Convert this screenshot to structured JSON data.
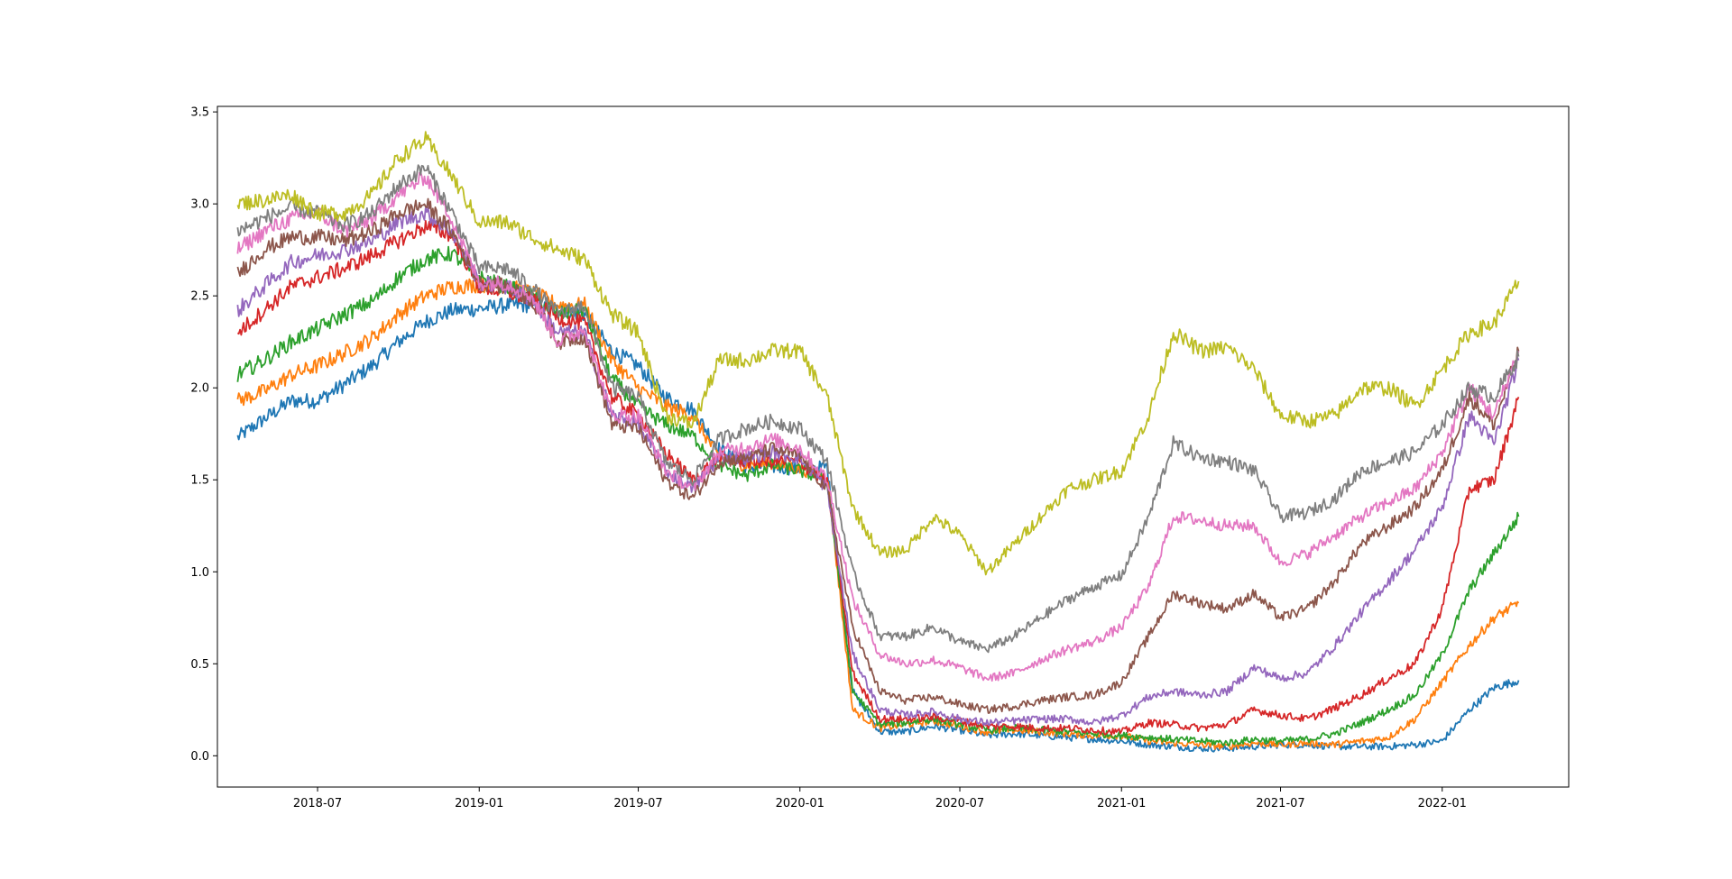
{
  "chart_data": {
    "type": "line",
    "title": "",
    "xlabel": "",
    "ylabel": "",
    "xlim": [
      "2018-03-09",
      "2022-05-25"
    ],
    "ylim": [
      -0.17,
      3.53
    ],
    "grid": false,
    "legend": "none",
    "x_ticks": [
      {
        "date": "2018-07-01",
        "label": "2018-07"
      },
      {
        "date": "2019-01-01",
        "label": "2019-01"
      },
      {
        "date": "2019-07-01",
        "label": "2019-07"
      },
      {
        "date": "2020-01-01",
        "label": "2020-01"
      },
      {
        "date": "2020-07-01",
        "label": "2020-07"
      },
      {
        "date": "2021-01-01",
        "label": "2021-01"
      },
      {
        "date": "2021-07-01",
        "label": "2021-07"
      },
      {
        "date": "2022-01-01",
        "label": "2022-01"
      }
    ],
    "y_ticks": [
      {
        "value": 0.0,
        "label": "0.0"
      },
      {
        "value": 0.5,
        "label": "0.5"
      },
      {
        "value": 1.0,
        "label": "1.0"
      },
      {
        "value": 1.5,
        "label": "1.5"
      },
      {
        "value": 2.0,
        "label": "2.0"
      },
      {
        "value": 2.5,
        "label": "2.5"
      },
      {
        "value": 3.0,
        "label": "3.0"
      },
      {
        "value": 3.5,
        "label": "3.5"
      }
    ],
    "x": [
      "2018-04-01",
      "2018-05-01",
      "2018-06-01",
      "2018-07-01",
      "2018-08-01",
      "2018-09-01",
      "2018-10-01",
      "2018-11-01",
      "2018-12-01",
      "2019-01-01",
      "2019-02-01",
      "2019-03-01",
      "2019-04-01",
      "2019-05-01",
      "2019-06-01",
      "2019-07-01",
      "2019-08-01",
      "2019-09-01",
      "2019-10-01",
      "2019-11-01",
      "2019-12-01",
      "2020-01-01",
      "2020-02-01",
      "2020-03-01",
      "2020-04-01",
      "2020-05-01",
      "2020-06-01",
      "2020-07-01",
      "2020-08-01",
      "2020-09-01",
      "2020-10-01",
      "2020-11-01",
      "2020-12-01",
      "2021-01-01",
      "2021-02-01",
      "2021-03-01",
      "2021-04-01",
      "2021-05-01",
      "2021-06-01",
      "2021-07-01",
      "2021-08-01",
      "2021-09-01",
      "2021-10-01",
      "2021-11-01",
      "2021-12-01",
      "2022-01-01",
      "2022-02-01",
      "2022-03-01",
      "2022-03-29"
    ],
    "series": [
      {
        "color": "#1f77b4",
        "values": [
          1.73,
          1.83,
          1.93,
          1.93,
          2.02,
          2.12,
          2.25,
          2.36,
          2.42,
          2.43,
          2.45,
          2.45,
          2.42,
          2.4,
          2.2,
          2.12,
          1.95,
          1.88,
          1.67,
          1.57,
          1.57,
          1.56,
          1.57,
          0.35,
          0.13,
          0.13,
          0.16,
          0.14,
          0.11,
          0.12,
          0.11,
          0.1,
          0.09,
          0.08,
          0.06,
          0.05,
          0.04,
          0.04,
          0.05,
          0.06,
          0.06,
          0.05,
          0.05,
          0.05,
          0.06,
          0.08,
          0.25,
          0.37,
          0.41
        ]
      },
      {
        "color": "#ff7f0e",
        "values": [
          1.93,
          1.98,
          2.07,
          2.12,
          2.19,
          2.27,
          2.4,
          2.5,
          2.55,
          2.56,
          2.55,
          2.52,
          2.45,
          2.45,
          2.15,
          2.0,
          1.9,
          1.85,
          1.62,
          1.58,
          1.59,
          1.56,
          1.52,
          0.25,
          0.15,
          0.17,
          0.19,
          0.16,
          0.13,
          0.14,
          0.13,
          0.12,
          0.11,
          0.11,
          0.08,
          0.07,
          0.06,
          0.05,
          0.07,
          0.06,
          0.07,
          0.06,
          0.08,
          0.1,
          0.2,
          0.4,
          0.6,
          0.75,
          0.83
        ]
      },
      {
        "color": "#2ca02c",
        "values": [
          2.07,
          2.15,
          2.25,
          2.32,
          2.4,
          2.47,
          2.6,
          2.7,
          2.73,
          2.6,
          2.55,
          2.5,
          2.4,
          2.42,
          2.05,
          1.9,
          1.8,
          1.74,
          1.58,
          1.52,
          1.58,
          1.55,
          1.5,
          0.35,
          0.17,
          0.18,
          0.2,
          0.17,
          0.14,
          0.15,
          0.14,
          0.13,
          0.12,
          0.11,
          0.1,
          0.09,
          0.08,
          0.07,
          0.09,
          0.08,
          0.09,
          0.12,
          0.18,
          0.25,
          0.33,
          0.55,
          0.9,
          1.1,
          1.3
        ]
      },
      {
        "color": "#d62728",
        "values": [
          2.3,
          2.42,
          2.55,
          2.6,
          2.65,
          2.72,
          2.8,
          2.88,
          2.83,
          2.55,
          2.52,
          2.48,
          2.38,
          2.35,
          1.95,
          1.85,
          1.65,
          1.5,
          1.62,
          1.6,
          1.6,
          1.6,
          1.48,
          0.45,
          0.2,
          0.2,
          0.21,
          0.19,
          0.16,
          0.16,
          0.15,
          0.15,
          0.14,
          0.13,
          0.18,
          0.17,
          0.15,
          0.17,
          0.25,
          0.22,
          0.2,
          0.26,
          0.33,
          0.42,
          0.5,
          0.8,
          1.45,
          1.5,
          1.95
        ]
      },
      {
        "color": "#9467bd",
        "values": [
          2.42,
          2.55,
          2.68,
          2.72,
          2.75,
          2.8,
          2.9,
          2.95,
          2.85,
          2.57,
          2.55,
          2.48,
          2.3,
          2.3,
          1.85,
          1.8,
          1.55,
          1.45,
          1.62,
          1.62,
          1.65,
          1.62,
          1.45,
          0.55,
          0.25,
          0.22,
          0.24,
          0.2,
          0.18,
          0.19,
          0.2,
          0.2,
          0.18,
          0.22,
          0.32,
          0.35,
          0.33,
          0.35,
          0.48,
          0.42,
          0.45,
          0.6,
          0.78,
          0.95,
          1.12,
          1.35,
          1.85,
          1.7,
          2.15
        ]
      },
      {
        "color": "#8c564b",
        "values": [
          2.62,
          2.75,
          2.82,
          2.82,
          2.8,
          2.85,
          2.95,
          3.0,
          2.85,
          2.57,
          2.55,
          2.48,
          2.25,
          2.28,
          1.8,
          1.78,
          1.5,
          1.4,
          1.6,
          1.62,
          1.67,
          1.63,
          1.45,
          0.7,
          0.35,
          0.3,
          0.32,
          0.28,
          0.25,
          0.27,
          0.3,
          0.32,
          0.33,
          0.4,
          0.65,
          0.88,
          0.83,
          0.8,
          0.88,
          0.75,
          0.8,
          0.95,
          1.15,
          1.25,
          1.35,
          1.55,
          1.95,
          1.8,
          2.2
        ]
      },
      {
        "color": "#e377c2",
        "values": [
          2.75,
          2.85,
          2.92,
          2.95,
          2.85,
          2.92,
          3.05,
          3.15,
          2.92,
          2.57,
          2.57,
          2.5,
          2.25,
          2.32,
          1.85,
          1.85,
          1.55,
          1.45,
          1.65,
          1.68,
          1.72,
          1.67,
          1.5,
          0.85,
          0.55,
          0.5,
          0.52,
          0.48,
          0.42,
          0.45,
          0.52,
          0.58,
          0.62,
          0.7,
          0.92,
          1.3,
          1.28,
          1.25,
          1.25,
          1.05,
          1.1,
          1.2,
          1.3,
          1.38,
          1.45,
          1.65,
          2.0,
          1.85,
          2.2
        ]
      },
      {
        "color": "#7f7f7f",
        "values": [
          2.85,
          2.92,
          2.98,
          2.95,
          2.88,
          2.95,
          3.1,
          3.2,
          2.95,
          2.65,
          2.65,
          2.55,
          2.4,
          2.45,
          2.0,
          1.95,
          1.6,
          1.5,
          1.72,
          1.78,
          1.82,
          1.78,
          1.6,
          1.0,
          0.65,
          0.65,
          0.7,
          0.62,
          0.58,
          0.65,
          0.75,
          0.85,
          0.92,
          0.98,
          1.3,
          1.7,
          1.62,
          1.6,
          1.55,
          1.3,
          1.32,
          1.4,
          1.55,
          1.6,
          1.65,
          1.8,
          2.0,
          1.95,
          2.17
        ]
      },
      {
        "color": "#bcbd22",
        "values": [
          3.0,
          3.02,
          3.05,
          2.95,
          2.95,
          3.05,
          3.25,
          3.35,
          3.15,
          2.9,
          2.9,
          2.82,
          2.75,
          2.7,
          2.4,
          2.3,
          1.85,
          1.8,
          2.15,
          2.15,
          2.2,
          2.2,
          1.95,
          1.35,
          1.1,
          1.12,
          1.3,
          1.2,
          1.0,
          1.15,
          1.3,
          1.45,
          1.5,
          1.55,
          1.85,
          2.3,
          2.2,
          2.22,
          2.1,
          1.85,
          1.82,
          1.85,
          2.0,
          2.0,
          1.9,
          2.1,
          2.3,
          2.35,
          2.58
        ]
      }
    ]
  }
}
